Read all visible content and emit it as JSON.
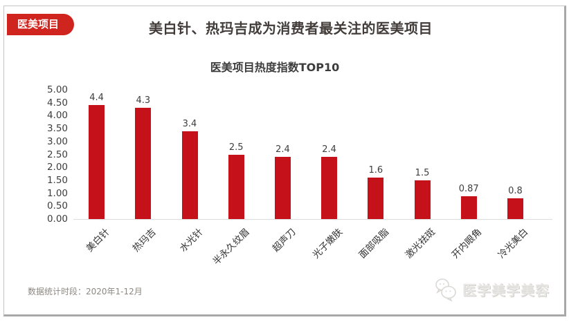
{
  "badge": {
    "label": "医美项目"
  },
  "header": {
    "title": "美白针、热玛吉成为消费者最关注的医美项目"
  },
  "chart_data": {
    "type": "bar",
    "title": "医美项目热度指数TOP10",
    "categories": [
      "美白针",
      "热玛吉",
      "水光针",
      "半永久纹眉",
      "超声刀",
      "光子嫩肤",
      "面部吸脂",
      "激光祛斑",
      "开内眼角",
      "冷光美白"
    ],
    "values": [
      4.4,
      4.3,
      3.4,
      2.5,
      2.4,
      2.4,
      1.6,
      1.5,
      0.87,
      0.8
    ],
    "value_labels": [
      "4.4",
      "4.3",
      "3.4",
      "2.5",
      "2.4",
      "2.4",
      "1.6",
      "1.5",
      "0.87",
      "0.8"
    ],
    "xlabel": "",
    "ylabel": "",
    "ylim": [
      0,
      5
    ],
    "yticks": [
      "5.00",
      "4.50",
      "4.00",
      "3.50",
      "3.00",
      "2.50",
      "2.00",
      "1.50",
      "1.00",
      "0.50",
      "0.00"
    ],
    "grid": false,
    "legend_position": "none",
    "bar_color": "#c5121a"
  },
  "footer": {
    "note": "数据统计时段：2020年1-12月",
    "brand": "医学美学美容",
    "brand_icon": "chat-bubbles-icon"
  },
  "colors": {
    "badge_bg": "#d0251f",
    "bar": "#c5121a",
    "title_text": "#423c3a",
    "axis_line": "#dcdcdc",
    "tick_text": "#3d3d3d",
    "note_text": "#8c8781",
    "watermark_text": "#e9e7e4",
    "frame_border": "#a8a8a8"
  }
}
